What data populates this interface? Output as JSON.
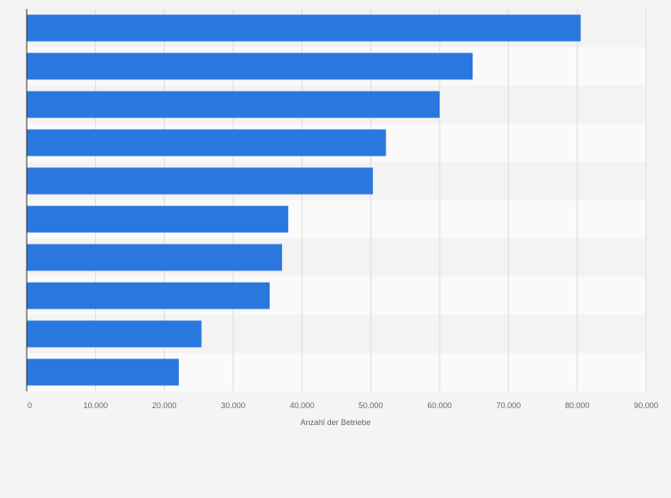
{
  "chart_data": {
    "type": "bar",
    "orientation": "horizontal",
    "categories": [
      "",
      "",
      "",
      "",
      "",
      "",
      "",
      "",
      "",
      ""
    ],
    "values": [
      80500,
      64800,
      60000,
      52200,
      50300,
      38000,
      37100,
      35300,
      25400,
      22100
    ],
    "xlabel": "Anzahl der Betriebe",
    "ylabel": "",
    "xlim": [
      0,
      90000
    ],
    "xticks": [
      {
        "value": 0,
        "label": "0"
      },
      {
        "value": 10000,
        "label": "10.000"
      },
      {
        "value": 20000,
        "label": "20.000"
      },
      {
        "value": 30000,
        "label": "30.000"
      },
      {
        "value": 40000,
        "label": "40.000"
      },
      {
        "value": 50000,
        "label": "50.000"
      },
      {
        "value": 60000,
        "label": "60.000"
      },
      {
        "value": 70000,
        "label": "70.000"
      },
      {
        "value": 80000,
        "label": "80.000"
      },
      {
        "value": 90000,
        "label": "90.000"
      }
    ],
    "grid": true,
    "colors": {
      "bar": "#2a77dd",
      "band_light": "#fafafa",
      "band_dark": "#f3f3f3",
      "grid": "#dcdcdc",
      "axis": "#333333",
      "background": "#f4f4f4"
    }
  }
}
